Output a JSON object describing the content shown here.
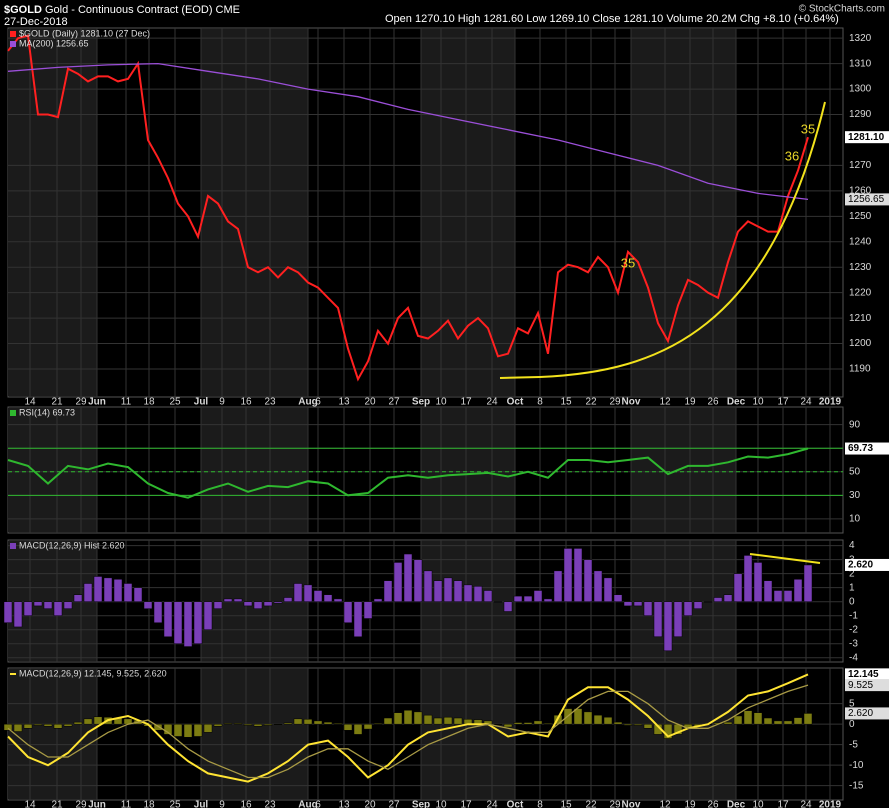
{
  "header": {
    "symbol": "$GOLD",
    "name": "Gold - Continuous Contract (EOD)",
    "exchange": "CME",
    "date": "27-Dec-2018",
    "quote": "Open 1270.10 High 1281.60 Low 1269.10 Close 1281.10 Volume 20.2M Chg +8.10 (+0.64%)",
    "credit": "© StockCharts.com"
  },
  "chart_data": [
    {
      "type": "line",
      "xlim": [
        0,
        167
      ],
      "ylim": [
        1179,
        1324
      ],
      "yticks": [
        1190,
        1200,
        1210,
        1220,
        1230,
        1240,
        1250,
        1260,
        1270,
        1290,
        1300,
        1310,
        1320
      ],
      "xticks": [
        {
          "value": 4.4,
          "label": "14"
        },
        {
          "value": 9.8,
          "label": "21"
        },
        {
          "value": 14.6,
          "label": "29"
        },
        {
          "value": 17.8,
          "label": "Jun"
        },
        {
          "value": 23.6,
          "label": "11"
        },
        {
          "value": 28.2,
          "label": "18"
        },
        {
          "value": 33.4,
          "label": "25"
        },
        {
          "value": 38.6,
          "label": "Jul"
        },
        {
          "value": 42.8,
          "label": "9"
        },
        {
          "value": 47.6,
          "label": "16"
        },
        {
          "value": 52.4,
          "label": "23"
        },
        {
          "value": 60,
          "label": "Aug"
        },
        {
          "value": 62,
          "label": "6"
        },
        {
          "value": 67.2,
          "label": "13"
        },
        {
          "value": 72.4,
          "label": "20"
        },
        {
          "value": 77.2,
          "label": "27"
        },
        {
          "value": 82.6,
          "label": "Sep"
        },
        {
          "value": 86.6,
          "label": "10"
        },
        {
          "value": 91.6,
          "label": "17"
        },
        {
          "value": 96.8,
          "label": "24"
        },
        {
          "value": 101.4,
          "label": "Oct"
        },
        {
          "value": 106.4,
          "label": "8"
        },
        {
          "value": 111.6,
          "label": "15"
        },
        {
          "value": 116.6,
          "label": "22"
        },
        {
          "value": 121.4,
          "label": "29"
        },
        {
          "value": 124.6,
          "label": "Nov"
        },
        {
          "value": 131.4,
          "label": "12"
        },
        {
          "value": 136.4,
          "label": "19"
        },
        {
          "value": 141,
          "label": "26"
        },
        {
          "value": 145.6,
          "label": "Dec"
        },
        {
          "value": 150,
          "label": "10"
        },
        {
          "value": 155,
          "label": "17"
        },
        {
          "value": 159.6,
          "label": "24"
        },
        {
          "value": 164.4,
          "label": "2019"
        }
      ],
      "series": [
        {
          "name": "$GOLD (Daily) 1281.10 (27 Dec)",
          "color": "#ff2020",
          "x": [
            0,
            2,
            4,
            6,
            8,
            10,
            12,
            14,
            16,
            18,
            20,
            22,
            24,
            26,
            28,
            30,
            32,
            34,
            36,
            38,
            40,
            42,
            44,
            46,
            48,
            50,
            52,
            54,
            56,
            58,
            60,
            62,
            64,
            66,
            68,
            70,
            72,
            74,
            76,
            78,
            80,
            82,
            84,
            86,
            88,
            90,
            92,
            94,
            96,
            98,
            100,
            102,
            104,
            106,
            108,
            110,
            112,
            114,
            116,
            118,
            120,
            122,
            124,
            126,
            128,
            130,
            132,
            134,
            136,
            138,
            140,
            142,
            144,
            146,
            148,
            150,
            152,
            154,
            156,
            158,
            160
          ],
          "values": [
            1315,
            1320,
            1321,
            1290,
            1290,
            1289,
            1308,
            1306,
            1303,
            1305,
            1305,
            1303,
            1304,
            1310,
            1280,
            1273,
            1265,
            1255,
            1250,
            1242,
            1258,
            1255,
            1248,
            1245,
            1230,
            1228,
            1230,
            1226,
            1230,
            1228,
            1224,
            1222,
            1218,
            1214,
            1198,
            1186,
            1193,
            1205,
            1200,
            1210,
            1214,
            1203,
            1202,
            1205,
            1209,
            1202,
            1207,
            1210,
            1206,
            1195,
            1196,
            1206,
            1204,
            1212,
            1196,
            1228,
            1231,
            1230,
            1228,
            1234,
            1230,
            1220,
            1236,
            1232,
            1222,
            1208,
            1201,
            1215,
            1225,
            1223,
            1220,
            1218,
            1232,
            1244,
            1248,
            1246,
            1244,
            1244,
            1258,
            1268,
            1281.1
          ]
        },
        {
          "name": "MA(200) 1256.65",
          "color": "#9b4fd8",
          "x": [
            0,
            10,
            20,
            30,
            40,
            50,
            60,
            70,
            80,
            90,
            100,
            110,
            120,
            130,
            140,
            150,
            160
          ],
          "values": [
            1307,
            1308.5,
            1309.5,
            1310,
            1307,
            1304,
            1300,
            1297,
            1292,
            1288,
            1284,
            1280,
            1275,
            1270,
            1263,
            1259,
            1256.65
          ]
        }
      ],
      "badges": [
        {
          "value": 1281.1,
          "label": "1281.10"
        },
        1256.65
      ],
      "annotations": [
        "35",
        "36",
        "35"
      ]
    },
    {
      "type": "line",
      "xlim": [
        0,
        167
      ],
      "ylim": [
        -2,
        105
      ],
      "yticks": [
        10,
        30,
        50,
        70,
        90
      ],
      "hlines": [
        70,
        50,
        30
      ],
      "x": [
        0,
        4,
        8,
        12,
        16,
        20,
        24,
        28,
        32,
        36,
        40,
        44,
        48,
        52,
        56,
        60,
        64,
        68,
        72,
        76,
        80,
        84,
        88,
        92,
        96,
        100,
        104,
        108,
        112,
        116,
        120,
        124,
        128,
        132,
        136,
        140,
        144,
        148,
        152,
        156,
        160
      ],
      "series": [
        {
          "name": "RSI(14) 69.73",
          "color": "#2fb82f",
          "values": [
            60,
            55,
            40,
            55,
            52,
            57,
            54,
            40,
            32,
            28,
            35,
            40,
            33,
            38,
            37,
            42,
            40,
            30,
            32,
            45,
            47,
            45,
            47,
            48,
            49,
            46,
            50,
            45,
            60,
            60,
            58,
            60,
            62,
            48,
            55,
            55,
            58,
            63,
            62,
            65,
            69.73
          ]
        }
      ],
      "badges": [
        69.73
      ]
    },
    {
      "type": "bar",
      "xlim": [
        0,
        167
      ],
      "ylim": [
        -4.3,
        4.4
      ],
      "yticks": [
        4,
        3,
        2,
        1,
        0,
        -1,
        -2,
        -3,
        -4
      ],
      "color": "#7a3fb8",
      "name": "MACD(12,26,9) Hist 2.620",
      "x": [
        0,
        2,
        4,
        6,
        8,
        10,
        12,
        14,
        16,
        18,
        20,
        22,
        24,
        26,
        28,
        30,
        32,
        34,
        36,
        38,
        40,
        42,
        44,
        46,
        48,
        50,
        52,
        54,
        56,
        58,
        60,
        62,
        64,
        66,
        68,
        70,
        72,
        74,
        76,
        78,
        80,
        82,
        84,
        86,
        88,
        90,
        92,
        94,
        96,
        98,
        100,
        102,
        104,
        106,
        108,
        110,
        112,
        114,
        116,
        118,
        120,
        122,
        124,
        126,
        128,
        130,
        132,
        134,
        136,
        138,
        140,
        142,
        144,
        146,
        148,
        150,
        152,
        154,
        156,
        158,
        160
      ],
      "values": [
        -1.5,
        -1.8,
        -1,
        -0.3,
        -0.5,
        -1,
        -0.5,
        0.5,
        1.3,
        1.8,
        1.7,
        1.6,
        1.3,
        1,
        -0.5,
        -1.5,
        -2.5,
        -3,
        -3.2,
        -3,
        -2,
        -0.5,
        0.2,
        0.2,
        -0.3,
        -0.5,
        -0.3,
        -0.1,
        0.3,
        1.3,
        1.2,
        0.8,
        0.5,
        0.2,
        -1.5,
        -2.5,
        -1.2,
        0.2,
        1.5,
        2.8,
        3.4,
        3,
        2.2,
        1.5,
        1.7,
        1.5,
        1.2,
        1.1,
        0.8,
        0,
        -0.7,
        0.4,
        0.4,
        0.8,
        0.2,
        2.2,
        3.8,
        3.8,
        3,
        2.2,
        1.7,
        0.5,
        -0.3,
        -0.3,
        -1,
        -2.5,
        -3.5,
        -2.5,
        -1,
        -0.5,
        0,
        0.3,
        0.5,
        2,
        3.3,
        2.8,
        1.5,
        0.8,
        0.8,
        1.6,
        2.62
      ],
      "badges": [
        {
          "value": 2.62,
          "label": "2.620"
        }
      ]
    },
    {
      "type": "line",
      "xlim": [
        0,
        167
      ],
      "ylim": [
        -18.5,
        13.7
      ],
      "yticks": [
        5,
        0,
        -5,
        -10,
        -15
      ],
      "legend": "MACD(12,26,9) 12.145, 9.525, 2.620",
      "bar_color": "#7d7d12",
      "x": [
        0,
        4,
        8,
        12,
        16,
        20,
        24,
        28,
        32,
        36,
        40,
        44,
        48,
        52,
        56,
        60,
        64,
        68,
        72,
        76,
        80,
        84,
        88,
        92,
        96,
        100,
        104,
        108,
        112,
        116,
        120,
        124,
        128,
        132,
        136,
        140,
        144,
        148,
        152,
        156,
        160
      ],
      "series": [
        {
          "color": "#ffe433",
          "values": [
            -3,
            -8,
            -10,
            -7,
            -2,
            1,
            2,
            0,
            -5,
            -9,
            -12,
            -13,
            -14,
            -12,
            -9,
            -5,
            -4,
            -8,
            -13,
            -10,
            -5,
            -2,
            -1,
            0,
            0,
            -3,
            -2,
            -3,
            6,
            9,
            9,
            6,
            2,
            -3,
            -1,
            0,
            3,
            7,
            8,
            10,
            12.145
          ]
        },
        {
          "color": "#a89a45",
          "values": [
            -1,
            -5,
            -8,
            -8,
            -5,
            -2,
            0,
            1,
            -2,
            -6,
            -9,
            -11,
            -13,
            -13,
            -11,
            -8,
            -6,
            -6,
            -9,
            -11,
            -8,
            -5,
            -3,
            -1,
            0,
            -1,
            -2,
            -2,
            2,
            6,
            8,
            8,
            5,
            1,
            -1,
            -1,
            1,
            4,
            6,
            8,
            9.525
          ]
        }
      ],
      "badges": [
        12.145,
        9.525,
        {
          "value": 2.62,
          "label": "2.620"
        }
      ]
    }
  ]
}
